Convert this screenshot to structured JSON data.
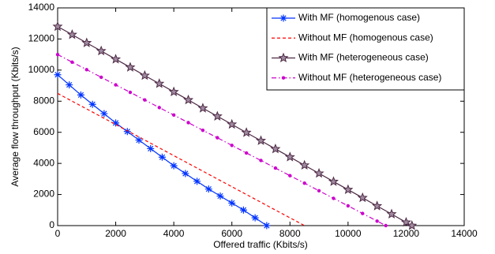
{
  "chart_data": {
    "type": "line",
    "xlabel": "Offered traffic (Kbits/s)",
    "ylabel": "Average flow throughput (Kbits/s)",
    "xlim": [
      0,
      14000
    ],
    "xticks": [
      0,
      2000,
      4000,
      6000,
      8000,
      10000,
      12000,
      14000
    ],
    "ylim": [
      0,
      14000
    ],
    "yticks": [
      0,
      2000,
      4000,
      6000,
      8000,
      10000,
      12000,
      14000
    ],
    "legend": "upper right",
    "series": [
      {
        "name": "With MF (homogenous case)",
        "color": "#0033ff",
        "marker": "asterisk",
        "linestyle": "solid",
        "x": [
          0,
          400,
          800,
          1200,
          1600,
          2000,
          2400,
          2800,
          3200,
          3600,
          4000,
          4400,
          4800,
          5200,
          5600,
          6000,
          6400,
          6800,
          7200
        ],
        "values": [
          9700,
          9050,
          8400,
          7800,
          7200,
          6600,
          6050,
          5500,
          4950,
          4400,
          3850,
          3350,
          2850,
          2350,
          1900,
          1450,
          1000,
          500,
          0
        ]
      },
      {
        "name": "Without MF (homogenous case)",
        "color": "#ff0000",
        "marker": "none",
        "linestyle": "dashed",
        "x": [
          0,
          8500
        ],
        "values": [
          8500,
          0
        ]
      },
      {
        "name": "With MF (heterogeneous case)",
        "color": "#4d2a45",
        "marker": "star",
        "linestyle": "solid",
        "x": [
          0,
          500,
          1000,
          1500,
          2000,
          2500,
          3000,
          3500,
          4000,
          4500,
          5000,
          5500,
          6000,
          6500,
          7000,
          7500,
          8000,
          8500,
          9000,
          9500,
          10000,
          10500,
          11000,
          11500,
          12000,
          12200
        ],
        "values": [
          12800,
          12280,
          11750,
          11230,
          10700,
          10180,
          9650,
          9130,
          8600,
          8080,
          7550,
          7030,
          6510,
          5980,
          5460,
          4930,
          4410,
          3880,
          3360,
          2830,
          2310,
          1790,
          1260,
          740,
          210,
          0
        ]
      },
      {
        "name": "Without MF (heterogeneous case)",
        "color": "#cc00cc",
        "marker": "dot",
        "linestyle": "dashdot",
        "x": [
          0,
          500,
          1000,
          1500,
          2000,
          2500,
          3000,
          3500,
          4000,
          4500,
          5000,
          5500,
          6000,
          6500,
          7000,
          7500,
          8000,
          8500,
          9000,
          9500,
          10000,
          10500,
          11000,
          11300
        ],
        "values": [
          11000,
          10510,
          10030,
          9540,
          9050,
          8570,
          8080,
          7590,
          7110,
          6620,
          6130,
          5650,
          5160,
          4670,
          4190,
          3700,
          3210,
          2730,
          2240,
          1750,
          1270,
          780,
          290,
          0
        ]
      }
    ]
  }
}
